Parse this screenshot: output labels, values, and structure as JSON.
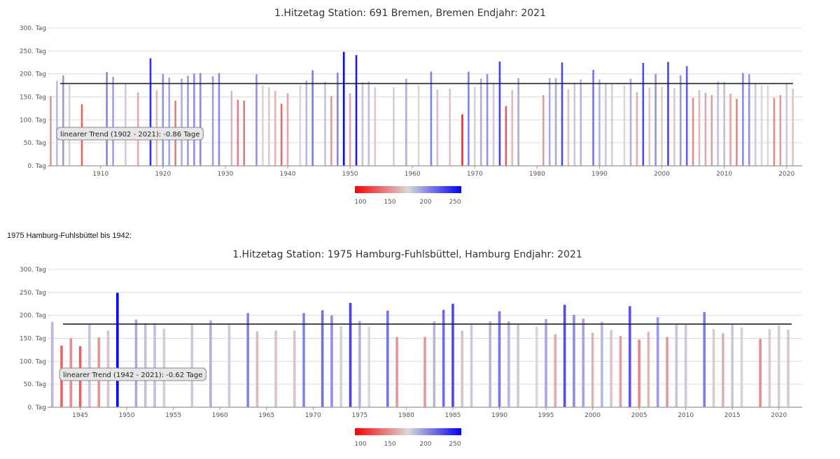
{
  "caption": "1975 Hamburg-Fuhlsbüttel bis 1942:",
  "chart_data": [
    {
      "type": "bar",
      "title": "1.Hitzetag Station: 691 Bremen, Bremen Endjahr: 2021",
      "ylim": [
        0,
        300
      ],
      "y_ticks": [
        {
          "v": 0,
          "label": "0. Tag"
        },
        {
          "v": 50,
          "label": "50. Tag"
        },
        {
          "v": 100,
          "label": "100. Tag"
        },
        {
          "v": 150,
          "label": "150. Tag"
        },
        {
          "v": 200,
          "label": "200. Tag"
        },
        {
          "v": 250,
          "label": "250. Tag"
        },
        {
          "v": 300,
          "label": "300. Tag"
        }
      ],
      "xlim": [
        1901.5,
        2022.5
      ],
      "x_ticks": [
        1910,
        1920,
        1930,
        1940,
        1950,
        1960,
        1970,
        1980,
        1990,
        2000,
        2010,
        2020
      ],
      "grid": true,
      "trend": {
        "y_start": 179,
        "y_end": 179,
        "label": "linearer Trend (1902 - 2021): -0.86 Tage"
      },
      "colorscale": {
        "stops": [
          100,
          150,
          200,
          250
        ],
        "labels": [
          "100",
          "150",
          "200",
          "250"
        ]
      },
      "x": [
        1902,
        1903,
        1904,
        1905,
        1907,
        1911,
        1912,
        1914,
        1916,
        1918,
        1919,
        1920,
        1921,
        1922,
        1923,
        1924,
        1925,
        1926,
        1928,
        1929,
        1931,
        1932,
        1933,
        1935,
        1936,
        1937,
        1938,
        1939,
        1940,
        1942,
        1943,
        1944,
        1946,
        1947,
        1948,
        1949,
        1950,
        1951,
        1952,
        1953,
        1954,
        1957,
        1959,
        1961,
        1963,
        1964,
        1966,
        1968,
        1969,
        1970,
        1971,
        1972,
        1973,
        1974,
        1975,
        1976,
        1977,
        1981,
        1982,
        1983,
        1984,
        1985,
        1986,
        1987,
        1989,
        1990,
        1991,
        1992,
        1994,
        1995,
        1996,
        1997,
        1998,
        1999,
        2000,
        2001,
        2002,
        2003,
        2004,
        2005,
        2006,
        2007,
        2008,
        2009,
        2010,
        2011,
        2012,
        2013,
        2014,
        2015,
        2016,
        2017,
        2018,
        2019,
        2020,
        2021
      ],
      "values": [
        152,
        185,
        197,
        176,
        134,
        204,
        194,
        179,
        160,
        234,
        165,
        200,
        192,
        142,
        190,
        196,
        201,
        202,
        195,
        202,
        163,
        144,
        142,
        199,
        175,
        171,
        163,
        135,
        158,
        175,
        186,
        208,
        183,
        152,
        203,
        248,
        158,
        241,
        182,
        184,
        171,
        171,
        190,
        175,
        205,
        166,
        168,
        112,
        205,
        172,
        190,
        200,
        179,
        227,
        130,
        165,
        191,
        154,
        191,
        191,
        225,
        167,
        181,
        188,
        209,
        188,
        180,
        178,
        175,
        190,
        160,
        224,
        170,
        200,
        172,
        226,
        169,
        197,
        217,
        148,
        165,
        159,
        154,
        184,
        183,
        157,
        146,
        202,
        199,
        180,
        175,
        175,
        148,
        154,
        180,
        168
      ]
    },
    {
      "type": "bar",
      "title": "1.Hitzetag Station: 1975 Hamburg-Fuhlsbüttel, Hamburg Endjahr: 2021",
      "ylim": [
        0,
        300
      ],
      "y_ticks": [
        {
          "v": 0,
          "label": "0. Tag"
        },
        {
          "v": 50,
          "label": "50. Tag"
        },
        {
          "v": 100,
          "label": "100. Tag"
        },
        {
          "v": 150,
          "label": "150. Tag"
        },
        {
          "v": 200,
          "label": "200. Tag"
        },
        {
          "v": 250,
          "label": "250. Tag"
        },
        {
          "v": 300,
          "label": "300. Tag"
        }
      ],
      "xlim": [
        1941.5,
        2022.5
      ],
      "x_ticks": [
        1945,
        1950,
        1955,
        1960,
        1965,
        1970,
        1975,
        1980,
        1985,
        1990,
        1995,
        2000,
        2005,
        2010,
        2015,
        2020
      ],
      "grid": true,
      "trend": {
        "y_start": 181,
        "y_end": 181,
        "label": "linearer Trend (1942 - 2021): -0.62 Tage"
      },
      "colorscale": {
        "stops": [
          100,
          150,
          200,
          250
        ],
        "labels": [
          "100",
          "150",
          "200",
          "250"
        ]
      },
      "x": [
        1942,
        1943,
        1944,
        1945,
        1946,
        1947,
        1948,
        1949,
        1951,
        1952,
        1953,
        1954,
        1957,
        1959,
        1961,
        1963,
        1964,
        1966,
        1968,
        1969,
        1971,
        1972,
        1973,
        1974,
        1975,
        1976,
        1978,
        1979,
        1982,
        1983,
        1984,
        1985,
        1986,
        1987,
        1989,
        1990,
        1991,
        1992,
        1994,
        1995,
        1996,
        1997,
        1998,
        1999,
        2000,
        2001,
        2002,
        2003,
        2004,
        2005,
        2006,
        2007,
        2008,
        2009,
        2010,
        2012,
        2013,
        2014,
        2015,
        2016,
        2018,
        2019,
        2020,
        2021
      ],
      "values": [
        186,
        134,
        150,
        133,
        182,
        152,
        167,
        249,
        191,
        183,
        183,
        171,
        180,
        189,
        180,
        205,
        165,
        167,
        167,
        205,
        211,
        200,
        177,
        227,
        188,
        175,
        210,
        153,
        153,
        187,
        212,
        225,
        167,
        180,
        187,
        209,
        187,
        180,
        175,
        192,
        159,
        223,
        201,
        193,
        162,
        186,
        168,
        155,
        220,
        147,
        164,
        196,
        153,
        182,
        180,
        207,
        170,
        161,
        181,
        174,
        149,
        170,
        178,
        169
      ]
    }
  ]
}
